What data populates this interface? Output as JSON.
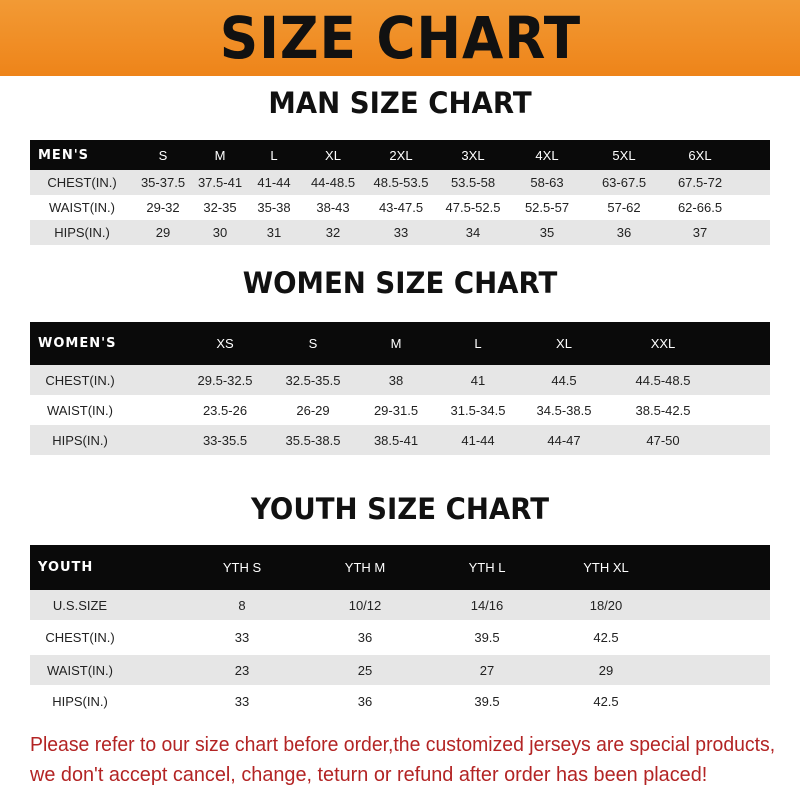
{
  "banner": {
    "title": "SIZE CHART",
    "color": "#ef8a22"
  },
  "men": {
    "title": "MAN SIZE CHART",
    "headers": [
      "MEN'S",
      "S",
      "M",
      "L",
      "XL",
      "2XL",
      "3XL",
      "4XL",
      "5XL",
      "6XL"
    ],
    "rows": [
      [
        "CHEST(IN.)",
        "35-37.5",
        "37.5-41",
        "41-44",
        "44-48.5",
        "48.5-53.5",
        "53.5-58",
        "58-63",
        "63-67.5",
        "67.5-72"
      ],
      [
        "WAIST(IN.)",
        "29-32",
        "32-35",
        "35-38",
        "38-43",
        "43-47.5",
        "47.5-52.5",
        "52.5-57",
        "57-62",
        "62-66.5"
      ],
      [
        "HIPS(IN.)",
        "29",
        "30",
        "31",
        "32",
        "33",
        "34",
        "35",
        "36",
        "37"
      ]
    ]
  },
  "women": {
    "title": "WOMEN SIZE CHART",
    "headers": [
      "WOMEN'S",
      "XS",
      "S",
      "M",
      "L",
      "XL",
      "XXL"
    ],
    "rows": [
      [
        "CHEST(IN.)",
        "29.5-32.5",
        "32.5-35.5",
        "38",
        "41",
        "44.5",
        "44.5-48.5"
      ],
      [
        "WAIST(IN.)",
        "23.5-26",
        "26-29",
        "29-31.5",
        "31.5-34.5",
        "34.5-38.5",
        "38.5-42.5"
      ],
      [
        "HIPS(IN.)",
        "33-35.5",
        "35.5-38.5",
        "38.5-41",
        "41-44",
        "44-47",
        "47-50"
      ]
    ]
  },
  "youth": {
    "title": "YOUTH SIZE CHART",
    "headers": [
      "YOUTH",
      "YTH S",
      "YTH M",
      "YTH L",
      "YTH XL"
    ],
    "rows": [
      [
        "U.S.SIZE",
        "8",
        "10/12",
        "14/16",
        "18/20"
      ],
      [
        "CHEST(IN.)",
        "33",
        "36",
        "39.5",
        "42.5"
      ],
      [
        "WAIST(IN.)",
        "23",
        "25",
        "27",
        "29"
      ],
      [
        "HIPS(IN.)",
        "33",
        "36",
        "39.5",
        "42.5"
      ]
    ]
  },
  "notice": {
    "line1": "Please refer to our size chart before order,the customized jerseys are special products,",
    "line2": "we don't accept cancel, change, teturn or refund after order has been placed!",
    "color": "#b32424"
  }
}
